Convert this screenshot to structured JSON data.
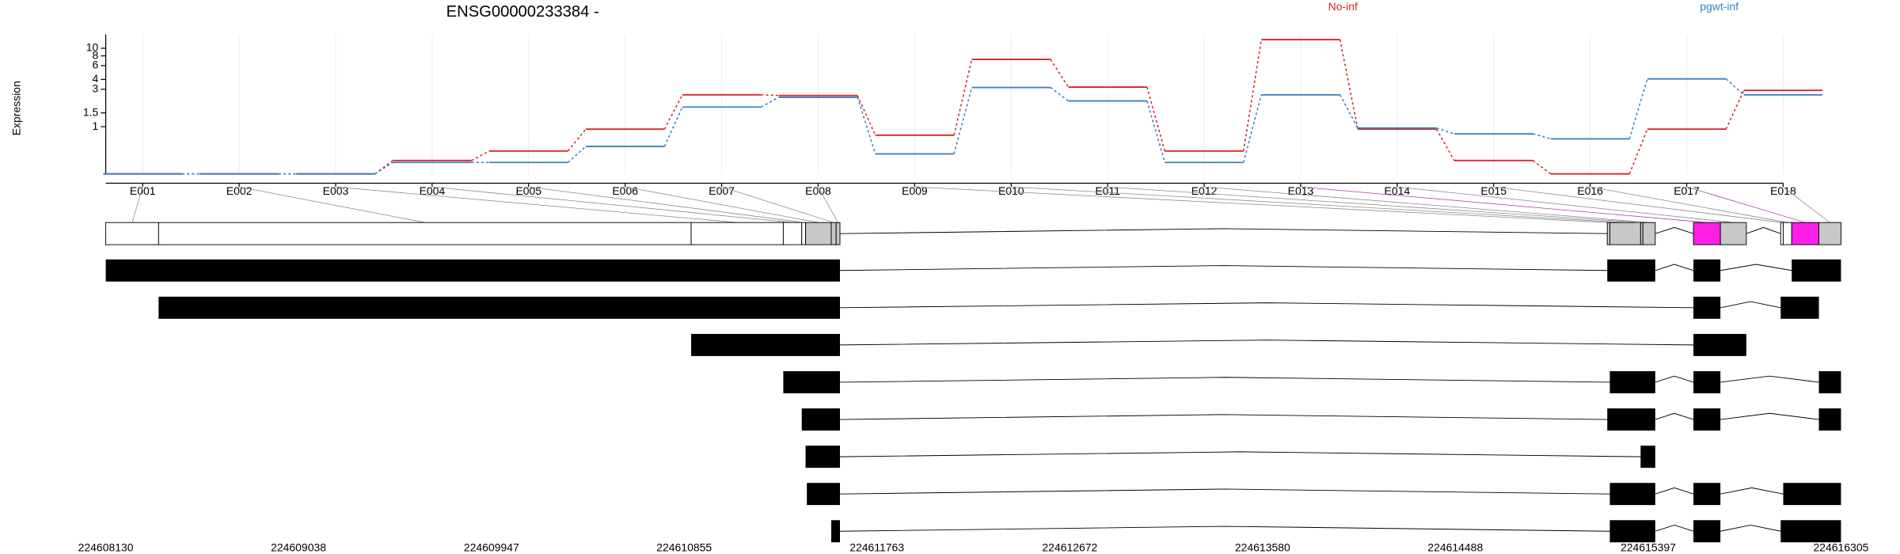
{
  "chart_data": {
    "type": "step",
    "title": "ENSG00000233384 -",
    "y_label": "Expression",
    "log_y": true,
    "grid": true,
    "categories": [
      "E001",
      "E002",
      "E003",
      "E004",
      "E005",
      "E006",
      "E007",
      "E008",
      "E009",
      "E010",
      "E011",
      "E012",
      "E013",
      "E014",
      "E015",
      "E016",
      "E017",
      "E018"
    ],
    "series": [
      {
        "name": "No-inf",
        "color": "#d62728",
        "values": [
          0.25,
          0.25,
          0.25,
          0.37,
          0.49,
          0.93,
          2.55,
          2.5,
          0.78,
          7.2,
          3.2,
          0.49,
          12.9,
          0.93,
          0.37,
          0.25,
          0.93,
          2.9
        ]
      },
      {
        "name": "pgwt-inf",
        "color": "#3a7fc1",
        "values": [
          0.25,
          0.25,
          0.25,
          0.35,
          0.35,
          0.56,
          1.78,
          2.37,
          0.45,
          3.16,
          2.13,
          0.35,
          2.55,
          0.96,
          0.81,
          0.7,
          4.07,
          2.55
        ]
      }
    ],
    "ylim": [
      0.245,
      15
    ],
    "yticks": [
      1,
      1.5,
      3,
      4,
      6,
      8,
      10
    ],
    "gene_model": {
      "xlim": [
        224608130,
        224616305
      ],
      "xticks": [
        224608130,
        224609038,
        224609947,
        224610855,
        224611763,
        224612672,
        224613580,
        224614488,
        224615397,
        224616305
      ],
      "exon_bins": [
        {
          "start": 224608130,
          "end": 224608379,
          "fill": "#ffffff"
        },
        {
          "start": 224608379,
          "end": 224610888,
          "fill": "#ffffff"
        },
        {
          "start": 224610888,
          "end": 224611322,
          "fill": "#ffffff"
        },
        {
          "start": 224611322,
          "end": 224611409,
          "fill": "#ffffff"
        },
        {
          "start": 224611409,
          "end": 224611427,
          "fill": "#ffffff"
        },
        {
          "start": 224611427,
          "end": 224611548,
          "fill": "#c8c8c8"
        },
        {
          "start": 224611548,
          "end": 224611571,
          "fill": "#c8c8c8"
        },
        {
          "start": 224611571,
          "end": 224611589,
          "fill": "#c8c8c8"
        },
        {
          "start": 224615204,
          "end": 224615216,
          "fill": "#c8c8c8"
        },
        {
          "start": 224615216,
          "end": 224615361,
          "fill": "#c8c8c8"
        },
        {
          "start": 224615361,
          "end": 224615372,
          "fill": "#c8c8c8"
        },
        {
          "start": 224615372,
          "end": 224615430,
          "fill": "#c8c8c8"
        },
        {
          "start": 224615610,
          "end": 224615737,
          "fill": "#ff1fe6"
        },
        {
          "start": 224615737,
          "end": 224615859,
          "fill": "#c8c8c8"
        },
        {
          "start": 224616021,
          "end": 224616033,
          "fill": "#ffffff"
        },
        {
          "start": 224616033,
          "end": 224616073,
          "fill": "#ffffff"
        },
        {
          "start": 224616073,
          "end": 224616201,
          "fill": "#ff1fe6"
        },
        {
          "start": 224616201,
          "end": 224616305,
          "fill": "#c8c8c8"
        }
      ],
      "transcripts": [
        [
          [
            224608130,
            224611589
          ],
          [
            224615204,
            224615430
          ],
          [
            224615610,
            224615737
          ],
          [
            224616073,
            224616305
          ]
        ],
        [
          [
            224608379,
            224611589
          ],
          [
            224615610,
            224615737
          ],
          [
            224616021,
            224616201
          ]
        ],
        [
          [
            224610888,
            224611589
          ],
          [
            224615610,
            224615859
          ]
        ],
        [
          [
            224611322,
            224611589
          ],
          [
            224615216,
            224615430
          ],
          [
            224615610,
            224615737
          ],
          [
            224616201,
            224616305
          ]
        ],
        [
          [
            224611409,
            224611589
          ],
          [
            224615204,
            224615430
          ],
          [
            224615610,
            224615737
          ],
          [
            224616201,
            224616305
          ]
        ],
        [
          [
            224611427,
            224611589
          ],
          [
            224615361,
            224615430
          ]
        ],
        [
          [
            224611433,
            224611589
          ],
          [
            224615216,
            224615430
          ],
          [
            224615610,
            224615737
          ],
          [
            224616033,
            224616305
          ]
        ],
        [
          [
            224611548,
            224611589
          ],
          [
            224615216,
            224615430
          ],
          [
            224615610,
            224615737
          ],
          [
            224616021,
            224616305
          ]
        ]
      ]
    }
  }
}
